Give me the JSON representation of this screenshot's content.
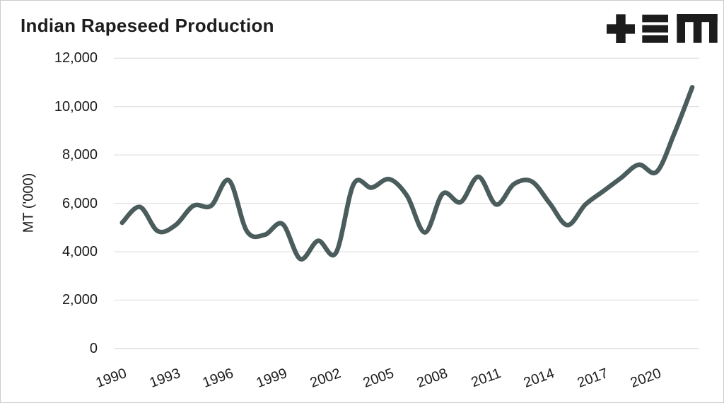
{
  "page": {
    "background": "#ffffff",
    "border_color": "#cccccc"
  },
  "logo": {
    "alt": "+≡M",
    "color": "#1c1c1c"
  },
  "chart_data": {
    "type": "line",
    "title": "Indian Rapeseed Production",
    "xlabel": "",
    "ylabel": "MT ('000)",
    "ylim": [
      0,
      12000
    ],
    "xlim": [
      1990,
      2022
    ],
    "grid": true,
    "legend": false,
    "smooth": true,
    "line_color": "#4a5c5c",
    "grid_color": "#e2e2e2",
    "baseline_color": "#d9d9d9",
    "text_color": "#1a1a1a",
    "x": [
      1990,
      1991,
      1992,
      1993,
      1994,
      1995,
      1996,
      1997,
      1998,
      1999,
      2000,
      2001,
      2002,
      2003,
      2004,
      2005,
      2006,
      2007,
      2008,
      2009,
      2010,
      2011,
      2012,
      2013,
      2014,
      2015,
      2016,
      2017,
      2018,
      2019,
      2020,
      2021,
      2022
    ],
    "series": [
      {
        "name": "Indian rapeseed production ('000 MT)",
        "values": [
          5200,
          5850,
          4850,
          5100,
          5900,
          5900,
          6950,
          4850,
          4700,
          5150,
          3700,
          4450,
          3950,
          6800,
          6650,
          7000,
          6300,
          4800,
          6400,
          6050,
          7100,
          5950,
          6800,
          6900,
          6000,
          5100,
          5950,
          6500,
          7050,
          7600,
          7300,
          8900,
          10800
        ]
      }
    ],
    "y_ticks": [
      {
        "value": 12000,
        "label": "12,000"
      },
      {
        "value": 10000,
        "label": "10,000"
      },
      {
        "value": 8000,
        "label": "8,000"
      },
      {
        "value": 6000,
        "label": "6,000"
      },
      {
        "value": 4000,
        "label": "4,000"
      },
      {
        "value": 2000,
        "label": "2,000"
      },
      {
        "value": 0,
        "label": "0"
      }
    ],
    "x_ticks": [
      {
        "value": 1990,
        "label": "1990"
      },
      {
        "value": 1993,
        "label": "1993"
      },
      {
        "value": 1996,
        "label": "1996"
      },
      {
        "value": 1999,
        "label": "1999"
      },
      {
        "value": 2002,
        "label": "2002"
      },
      {
        "value": 2005,
        "label": "2005"
      },
      {
        "value": 2008,
        "label": "2008"
      },
      {
        "value": 2011,
        "label": "2011"
      },
      {
        "value": 2014,
        "label": "2014"
      },
      {
        "value": 2017,
        "label": "2017"
      },
      {
        "value": 2020,
        "label": "2020"
      }
    ]
  }
}
